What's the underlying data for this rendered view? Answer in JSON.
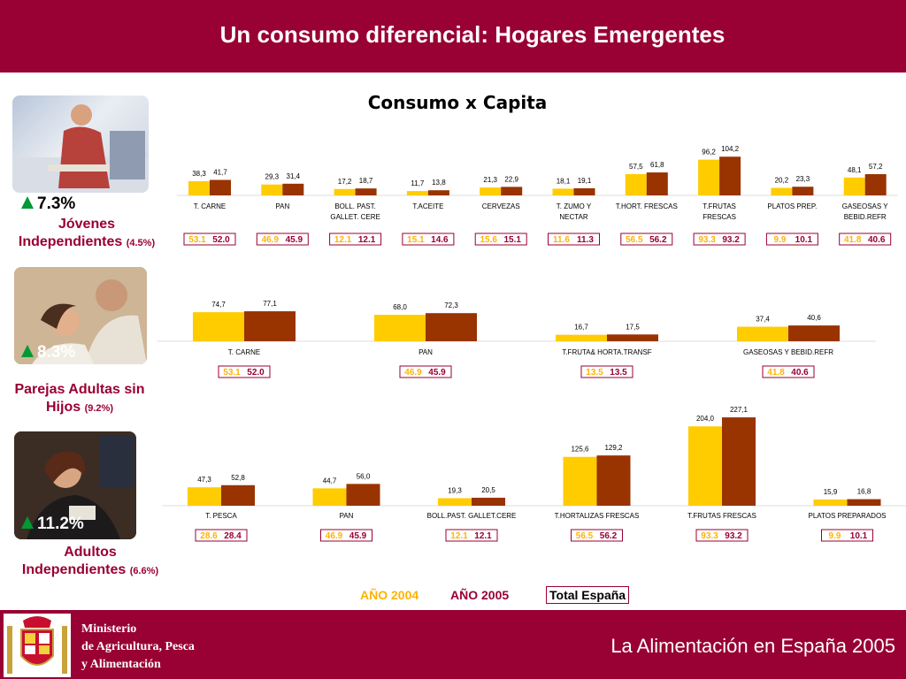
{
  "header": {
    "title": "Un consumo diferencial: Hogares Emergentes"
  },
  "subtitle": "Consumo x Capita",
  "colors": {
    "brand": "#990033",
    "year2004": "#FFCC00",
    "year2005": "#993300",
    "growth_arrow": "#009933"
  },
  "icons": {
    "growth": "up-triangle-icon",
    "crest": "coat-of-arms-icon"
  },
  "groups": [
    {
      "growth": "7.3%",
      "label_lines": [
        "Jóvenes",
        "Independientes"
      ],
      "share": "(4.5%)"
    },
    {
      "growth": "8.3%",
      "label_lines": [
        "Parejas Adultas sin",
        "Hijos"
      ],
      "share": "(9.2%)"
    },
    {
      "growth": "11.2%",
      "label_lines": [
        "Adultos",
        "Independientes"
      ],
      "share": "(6.6%)"
    }
  ],
  "chart_data": [
    {
      "type": "bar",
      "group": "Jóvenes Independientes",
      "categories": [
        [
          "T. CARNE"
        ],
        [
          "PAN"
        ],
        [
          "BOLL. PAST.",
          "GALLET. CERE"
        ],
        [
          "T.ACEITE"
        ],
        [
          "CERVEZAS"
        ],
        [
          "T. ZUMO Y",
          "NECTAR"
        ],
        [
          "T.HORT. FRESCAS"
        ],
        [
          "T.FRUTAS",
          "FRESCAS"
        ],
        [
          "PLATOS PREP."
        ],
        [
          "GASEOSAS Y",
          "BEBID.REFR"
        ]
      ],
      "series": [
        {
          "name": "AÑO 2004",
          "values": [
            38.3,
            29.3,
            17.2,
            11.7,
            21.3,
            18.1,
            57.5,
            96.2,
            20.2,
            48.1
          ],
          "labels": [
            "38,3",
            "29,3",
            "17,2",
            "11,7",
            "21,3",
            "18,1",
            "57,5",
            "96,2",
            "20,2",
            "48,1"
          ]
        },
        {
          "name": "AÑO 2005",
          "values": [
            41.7,
            31.4,
            18.7,
            13.8,
            22.9,
            19.1,
            61.8,
            104.2,
            23.3,
            57.2
          ],
          "labels": [
            "41,7",
            "31,4",
            "18,7",
            "13,8",
            "22,9",
            "19,1",
            "61,8",
            "104,2",
            "23,3",
            "57,2"
          ]
        }
      ],
      "total_espana": [
        [
          "53.1",
          "52.0"
        ],
        [
          "46.9",
          "45.9"
        ],
        [
          "12.1",
          "12.1"
        ],
        [
          "15.1",
          "14.6"
        ],
        [
          "15.6",
          "15.1"
        ],
        [
          "11.6",
          "11.3"
        ],
        [
          "56.5",
          "56.2"
        ],
        [
          "93.3",
          "93.2"
        ],
        [
          "9.9",
          "10.1"
        ],
        [
          "41.8",
          "40.6"
        ]
      ]
    },
    {
      "type": "bar",
      "group": "Parejas Adultas sin Hijos",
      "categories": [
        [
          "T. CARNE"
        ],
        [
          "PAN"
        ],
        [
          "T.FRUTA& HORTA.TRANSF"
        ],
        [
          "GASEOSAS Y BEBID.REFR"
        ]
      ],
      "series": [
        {
          "name": "AÑO 2004",
          "values": [
            74.7,
            68.0,
            16.7,
            37.4
          ],
          "labels": [
            "74,7",
            "68,0",
            "16,7",
            "37,4"
          ]
        },
        {
          "name": "AÑO 2005",
          "values": [
            77.1,
            72.3,
            17.5,
            40.6
          ],
          "labels": [
            "77,1",
            "72,3",
            "17,5",
            "40,6"
          ]
        }
      ],
      "total_espana": [
        [
          "53.1",
          "52.0"
        ],
        [
          "46.9",
          "45.9"
        ],
        [
          "13.5",
          "13.5"
        ],
        [
          "41.8",
          "40.6"
        ]
      ]
    },
    {
      "type": "bar",
      "group": "Adultos Independientes",
      "categories": [
        [
          "T. PESCA"
        ],
        [
          "PAN"
        ],
        [
          "BOLL.PAST. GALLET.CERE"
        ],
        [
          "T.HORTALIZAS FRESCAS"
        ],
        [
          "T.FRUTAS FRESCAS"
        ],
        [
          "PLATOS PREPARADOS"
        ]
      ],
      "series": [
        {
          "name": "AÑO 2004",
          "values": [
            47.3,
            44.7,
            19.3,
            125.6,
            204.0,
            15.9
          ],
          "labels": [
            "47,3",
            "44,7",
            "19,3",
            "125,6",
            "204,0",
            "15,9"
          ]
        },
        {
          "name": "AÑO 2005",
          "values": [
            52.8,
            56.0,
            20.5,
            129.2,
            227.1,
            16.8
          ],
          "labels": [
            "52,8",
            "56,0",
            "20,5",
            "129,2",
            "227,1",
            "16,8"
          ]
        }
      ],
      "total_espana": [
        [
          "28.6",
          "28.4"
        ],
        [
          "46.9",
          "45.9"
        ],
        [
          "12.1",
          "12.1"
        ],
        [
          "56.5",
          "56.2"
        ],
        [
          "93.3",
          "93.2"
        ],
        [
          "9.9",
          "10.1"
        ]
      ]
    }
  ],
  "legend": {
    "year2004": "AÑO 2004",
    "year2005": "AÑO 2005",
    "total": "Total España"
  },
  "footer": {
    "ministry_lines": [
      "Ministerio",
      "de Agricultura, Pesca",
      "y Alimentación"
    ],
    "title": "La Alimentación en España 2005"
  }
}
